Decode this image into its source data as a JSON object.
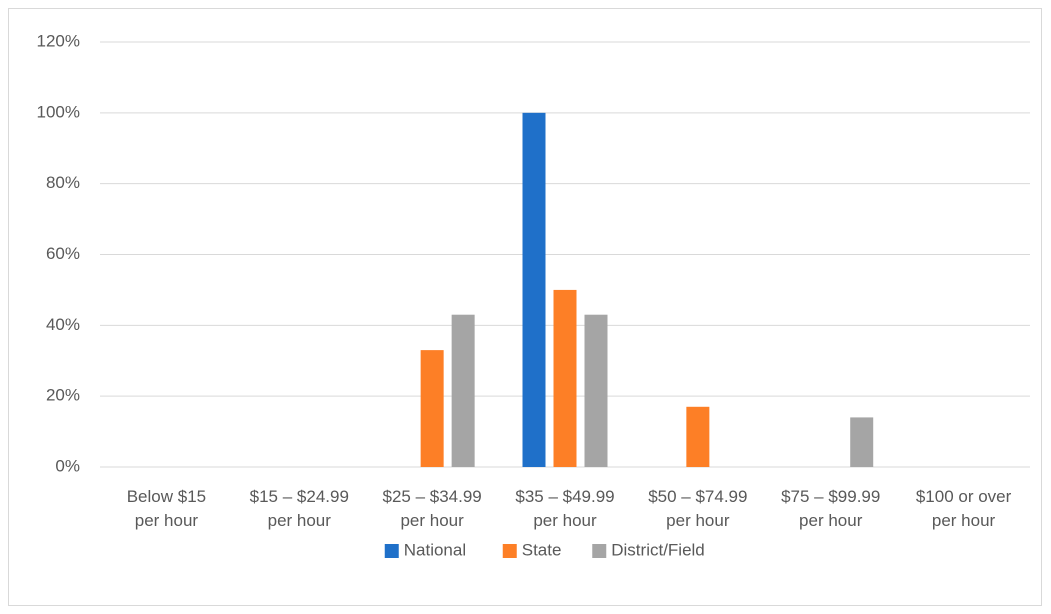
{
  "chart_data": {
    "type": "bar",
    "categories": [
      "Below $15 per hour",
      "$15 – $24.99 per hour",
      "$25 – $34.99 per hour",
      "$35 – $49.99 per hour",
      "$50 – $74.99 per hour",
      "$75 – $99.99 per hour",
      "$100 or over per hour"
    ],
    "series": [
      {
        "name": "National",
        "color": "#1f70c9",
        "values": [
          0,
          0,
          0,
          100,
          0,
          0,
          0
        ]
      },
      {
        "name": "State",
        "color": "#fd7f26",
        "values": [
          0,
          0,
          33,
          50,
          17,
          0,
          0
        ]
      },
      {
        "name": "District/Field",
        "color": "#a5a5a5",
        "values": [
          0,
          0,
          43,
          43,
          0,
          14,
          0
        ]
      }
    ],
    "ylim": [
      0,
      120
    ],
    "yticks": [
      {
        "value": 0,
        "label": "0%"
      },
      {
        "value": 20,
        "label": "20%"
      },
      {
        "value": 40,
        "label": "40%"
      },
      {
        "value": 60,
        "label": "60%"
      },
      {
        "value": 80,
        "label": "80%"
      },
      {
        "value": 100,
        "label": "100%"
      },
      {
        "value": 120,
        "label": "120%"
      }
    ],
    "grid": true,
    "legend": "bottom"
  }
}
